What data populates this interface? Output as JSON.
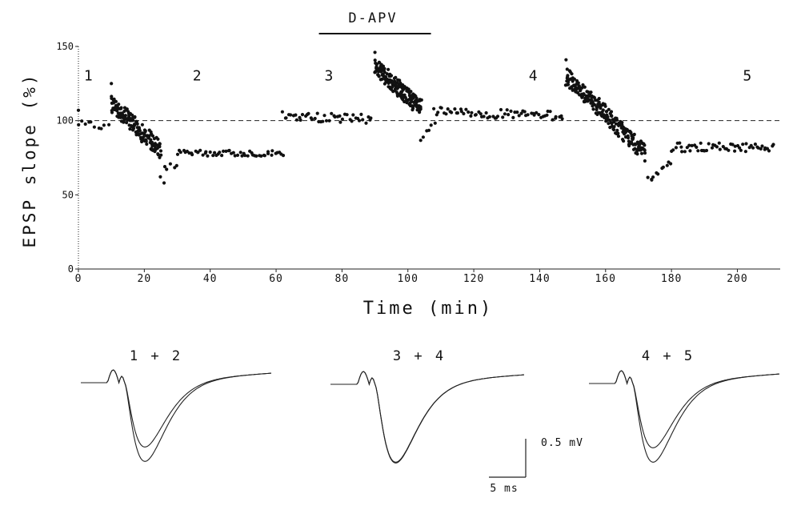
{
  "chart_data": [
    {
      "type": "scatter",
      "title": "",
      "xlabel": "Time  (min)",
      "ylabel": "EPSP slope  (%)",
      "xlim": [
        0,
        213
      ],
      "ylim": [
        0,
        150
      ],
      "x_ticks": [
        0,
        20,
        40,
        60,
        80,
        100,
        120,
        140,
        160,
        180,
        200
      ],
      "y_ticks": [
        0,
        50,
        100,
        150
      ],
      "baseline": 100,
      "drug_bar": {
        "label": "D-APV",
        "x_start": 73,
        "x_end": 107
      },
      "segment_labels": [
        {
          "label": "1",
          "x": 3,
          "y": 127
        },
        {
          "label": "2",
          "x": 36,
          "y": 127
        },
        {
          "label": "3",
          "x": 76,
          "y": 127
        },
        {
          "label": "4",
          "x": 138,
          "y": 127
        },
        {
          "label": "5",
          "x": 203,
          "y": 127
        }
      ],
      "series": [
        {
          "segments": [
            {
              "x_start": 0,
              "x_end": 9,
              "y_start": 98,
              "y_end": 96,
              "n": 10,
              "jitter": 2
            },
            {
              "x_start": 10,
              "x_end": 25,
              "y_start": 112,
              "y_end": 80,
              "n": 150,
              "jitter": 6
            },
            {
              "x_start": 25,
              "x_end": 30,
              "y_start": 65,
              "y_end": 72,
              "n": 6,
              "jitter": 3
            },
            {
              "x_start": 30,
              "x_end": 62,
              "y_start": 78,
              "y_end": 78,
              "n": 55,
              "jitter": 2
            },
            {
              "x_start": 62,
              "x_end": 89,
              "y_start": 103,
              "y_end": 101,
              "n": 45,
              "jitter": 3
            },
            {
              "x_start": 90,
              "x_end": 104,
              "y_start": 137,
              "y_end": 108,
              "n": 170,
              "jitter": 6
            },
            {
              "x_start": 104,
              "x_end": 108,
              "y_start": 85,
              "y_end": 100,
              "n": 6,
              "jitter": 3
            },
            {
              "x_start": 108,
              "x_end": 147,
              "y_start": 106,
              "y_end": 103,
              "n": 65,
              "jitter": 3
            },
            {
              "x_start": 148,
              "x_end": 172,
              "y_start": 130,
              "y_end": 78,
              "n": 230,
              "jitter": 6
            },
            {
              "x_start": 173,
              "x_end": 180,
              "y_start": 60,
              "y_end": 72,
              "n": 10,
              "jitter": 2
            },
            {
              "x_start": 180,
              "x_end": 211,
              "y_start": 82,
              "y_end": 82,
              "n": 55,
              "jitter": 3
            }
          ],
          "extra_points": [
            {
              "x": 0,
              "y": 107
            },
            {
              "x": 10,
              "y": 125
            },
            {
              "x": 26,
              "y": 58
            },
            {
              "x": 90,
              "y": 146
            },
            {
              "x": 148,
              "y": 141
            },
            {
              "x": 174,
              "y": 60
            }
          ]
        }
      ]
    },
    {
      "type": "line",
      "title": "1 + 2",
      "traces": [
        {
          "name": "",
          "peak": 1.0
        },
        {
          "name": "",
          "peak": 0.82
        }
      ]
    },
    {
      "type": "line",
      "title": "3 + 4",
      "traces": [
        {
          "name": "",
          "peak": 1.0
        },
        {
          "name": "",
          "peak": 0.99
        }
      ]
    },
    {
      "type": "line",
      "title": "4 + 5",
      "traces": [
        {
          "name": "",
          "peak": 1.0
        },
        {
          "name": "",
          "peak": 0.82
        }
      ]
    }
  ],
  "scale_bar": {
    "voltage_label": "0.5 mV",
    "time_label": "5 ms"
  }
}
